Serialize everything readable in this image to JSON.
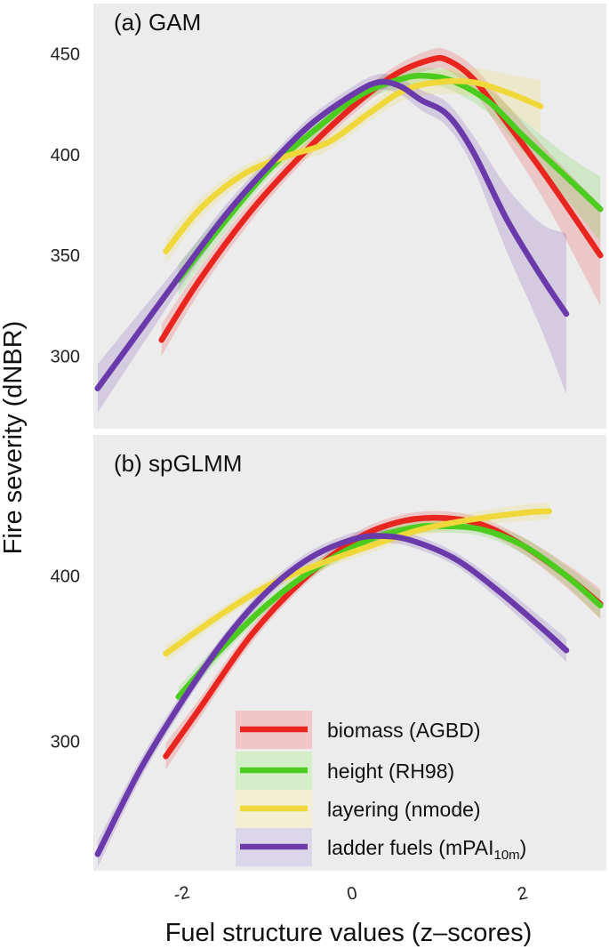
{
  "colors": {
    "biomass": "#e8251f",
    "height": "#4ccc1f",
    "layering": "#f0d83a",
    "ladder": "#6a3aab",
    "panel_bg": "#ececec"
  },
  "axes": {
    "ylabel": "Fire severity (dNBR)",
    "xlabel": "Fuel structure values (z–scores)"
  },
  "legend": {
    "entries": [
      {
        "key": "biomass",
        "label": "biomass (AGBD)"
      },
      {
        "key": "height",
        "label": "height (RH98)"
      },
      {
        "key": "layering",
        "label": "layering (nmode)"
      },
      {
        "key": "ladder",
        "label": "ladder fuels (mPAI",
        "sub": "10m",
        "suffix": ")"
      }
    ]
  },
  "chart_data": [
    {
      "type": "line",
      "title": "(a) GAM",
      "xlabel": "Fuel structure values (z–scores)",
      "ylabel": "Fire severity (dNBR)",
      "xlim": [
        -3.05,
        2.97
      ],
      "ylim": [
        264,
        475
      ],
      "yticks": [
        300,
        350,
        400,
        450
      ],
      "xticks": [
        -2,
        0,
        2
      ],
      "series": [
        {
          "key": "biomass",
          "name": "biomass (AGBD)",
          "x": [
            -2.25,
            -1.8,
            -1.2,
            -0.6,
            0,
            0.5,
            0.9,
            1.1,
            1.4,
            1.8,
            2.3,
            2.9
          ],
          "y": [
            308,
            338,
            372,
            400,
            424,
            440,
            447,
            447,
            438,
            416,
            387,
            350
          ],
          "band": [
            8,
            6,
            5,
            4,
            4,
            4,
            5,
            5,
            6,
            9,
            14,
            25
          ]
        },
        {
          "key": "height",
          "name": "height (RH98)",
          "x": [
            -2.05,
            -1.6,
            -1.0,
            -0.4,
            0.1,
            0.6,
            0.9,
            1.2,
            1.6,
            2.0,
            2.5,
            2.9
          ],
          "y": [
            338,
            362,
            392,
            414,
            430,
            438,
            439,
            436,
            426,
            409,
            389,
            373
          ],
          "band": [
            8,
            6,
            4,
            4,
            4,
            4,
            4,
            5,
            6,
            8,
            11,
            16
          ]
        },
        {
          "key": "layering",
          "name": "layering (nmode)",
          "x": [
            -2.2,
            -1.8,
            -1.3,
            -0.8,
            -0.3,
            0.2,
            0.6,
            1.0,
            1.4,
            1.8,
            2.2
          ],
          "y": [
            352,
            373,
            390,
            399,
            406,
            421,
            432,
            436,
            436,
            431,
            424
          ],
          "band": [
            6,
            5,
            4,
            4,
            4,
            4,
            5,
            6,
            7,
            9,
            13
          ]
        },
        {
          "key": "ladder",
          "name": "ladder fuels (mPAI10m)",
          "x": [
            -3.0,
            -2.5,
            -2.0,
            -1.5,
            -1.0,
            -0.5,
            0,
            0.3,
            0.55,
            0.8,
            1.1,
            1.4,
            1.8,
            2.2,
            2.5
          ],
          "y": [
            284,
            313,
            342,
            370,
            394,
            415,
            430,
            436,
            434,
            427,
            420,
            402,
            368,
            340,
            321
          ],
          "band": [
            12,
            9,
            6,
            5,
            4,
            4,
            4,
            4,
            4,
            5,
            6,
            8,
            16,
            26,
            40
          ]
        }
      ]
    },
    {
      "type": "line",
      "title": "(b) spGLMM",
      "xlabel": "Fuel structure values (z–scores)",
      "ylabel": "Fire severity (dNBR)",
      "xlim": [
        -3.05,
        2.97
      ],
      "ylim": [
        222,
        485
      ],
      "yticks": [
        300,
        400
      ],
      "xticks": [
        -2,
        0,
        2
      ],
      "series": [
        {
          "key": "biomass",
          "name": "biomass (AGBD)",
          "x": [
            -2.2,
            -1.8,
            -1.2,
            -0.6,
            0,
            0.5,
            1.0,
            1.5,
            2.0,
            2.5,
            2.9
          ],
          "y": [
            291,
            320,
            364,
            397,
            421,
            432,
            435,
            431,
            418,
            400,
            383
          ],
          "band": [
            8,
            6,
            5,
            4,
            4,
            4,
            4,
            4,
            5,
            7,
            9
          ]
        },
        {
          "key": "height",
          "name": "height (RH98)",
          "x": [
            -2.05,
            -1.6,
            -1.0,
            -0.4,
            0.2,
            0.7,
            1.0,
            1.5,
            2.0,
            2.5,
            2.9
          ],
          "y": [
            327,
            353,
            383,
            406,
            422,
            429,
            430,
            428,
            418,
            400,
            382
          ],
          "band": [
            6,
            5,
            4,
            4,
            4,
            4,
            4,
            4,
            5,
            6,
            8
          ]
        },
        {
          "key": "layering",
          "name": "layering (nmode)",
          "x": [
            -2.2,
            -1.6,
            -1.0,
            -0.4,
            0.2,
            0.8,
            1.4,
            2.0,
            2.3
          ],
          "y": [
            353,
            375,
            394,
            407,
            418,
            428,
            434,
            438,
            439
          ],
          "band": [
            5,
            4,
            4,
            4,
            4,
            4,
            4,
            5,
            5
          ]
        },
        {
          "key": "ladder",
          "name": "ladder fuels (mPAI10m)",
          "x": [
            -3.0,
            -2.5,
            -2.0,
            -1.5,
            -1.0,
            -0.5,
            0,
            0.35,
            0.7,
            1.2,
            1.7,
            2.2,
            2.5
          ],
          "y": [
            232,
            283,
            325,
            362,
            391,
            411,
            422,
            424,
            421,
            410,
            391,
            369,
            355
          ],
          "band": [
            8,
            6,
            5,
            4,
            4,
            4,
            4,
            4,
            4,
            4,
            5,
            6,
            7
          ]
        }
      ]
    }
  ]
}
